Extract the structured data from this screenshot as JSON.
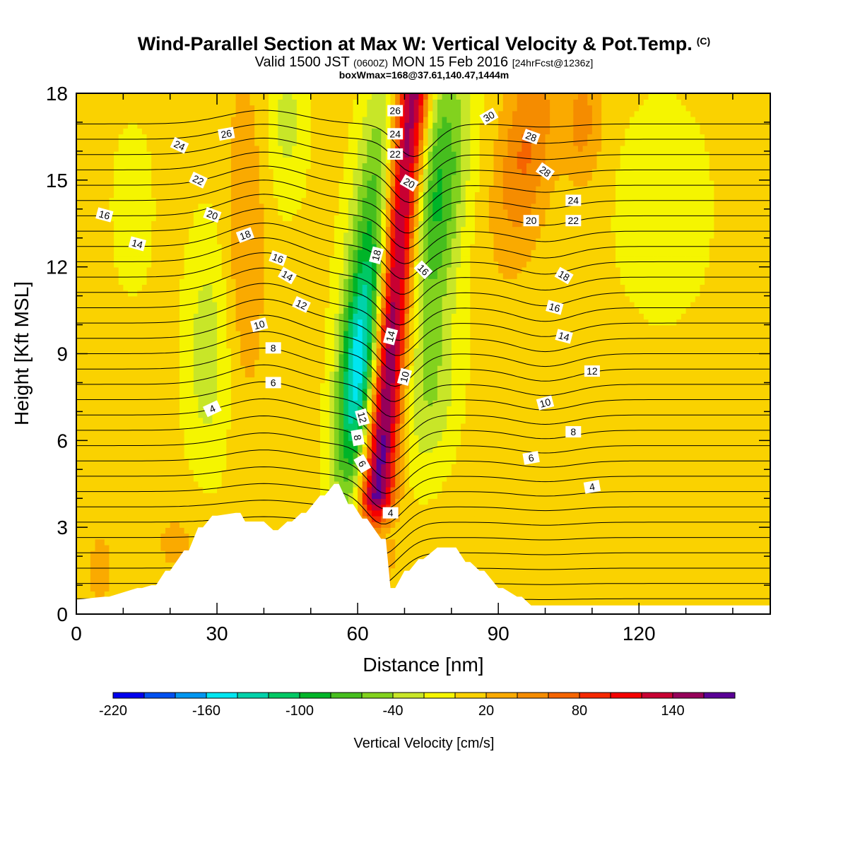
{
  "title": {
    "main": "Wind-Parallel Section at Max W: Vertical Velocity & Pot.Temp.",
    "copyright": "(C)",
    "valid_prefix": "Valid 1500 JST",
    "valid_utc": "(0600Z)",
    "valid_date": "MON 15 Feb 2016",
    "forecast": "[24hrFcst@1236z]",
    "boxwmax": "boxWmax=168@37.61,140.47,1444m"
  },
  "chart_data": {
    "type": "heatmap",
    "xlabel": "Distance [nm]",
    "ylabel": "Height [Kft MSL]",
    "xlim": [
      0,
      148
    ],
    "ylim": [
      0,
      18
    ],
    "x_ticks": [
      0,
      30,
      60,
      90,
      120
    ],
    "y_ticks": [
      0,
      3,
      6,
      9,
      12,
      15,
      18
    ],
    "colorbar": {
      "label": "Vertical Velocity [cm/s]",
      "tick_labels": [
        "-220",
        "-160",
        "-100",
        "-40",
        "20",
        "80",
        "140"
      ],
      "tick_values": [
        -220,
        -160,
        -100,
        -40,
        20,
        80,
        140
      ],
      "colors": [
        "#0000ee",
        "#0050f0",
        "#0096f0",
        "#00e6f0",
        "#00d2aa",
        "#00c864",
        "#00b428",
        "#46be1e",
        "#82d21e",
        "#c8e628",
        "#f5f500",
        "#fad200",
        "#faaa00",
        "#f58c00",
        "#f56400",
        "#f52800",
        "#f50000",
        "#c80032",
        "#96005a",
        "#5a0096"
      ]
    },
    "contour_labels": {
      "kind": "potential temperature",
      "values": [
        "26",
        "24",
        "22",
        "20",
        "16",
        "14",
        "18",
        "16",
        "14",
        "12",
        "10",
        "8",
        "6",
        "4",
        "26",
        "24",
        "22",
        "20",
        "18",
        "16",
        "14",
        "10",
        "12",
        "8",
        "6",
        "4",
        "30",
        "28",
        "28",
        "24",
        "22",
        "20",
        "18",
        "16",
        "14",
        "12",
        "10",
        "8",
        "6",
        "4"
      ]
    },
    "terrain_profile": {
      "x": [
        0,
        6,
        7,
        13,
        14,
        16,
        17,
        19,
        20,
        23,
        24,
        26,
        27,
        29,
        30,
        34,
        35,
        36,
        37,
        39,
        40,
        42,
        43,
        45,
        46,
        48,
        49,
        52,
        53,
        55,
        56,
        58,
        59,
        61,
        62,
        65,
        66,
        67,
        68,
        70,
        71,
        73,
        74,
        77,
        78,
        80,
        81,
        83,
        84,
        86,
        87,
        90,
        91,
        94,
        95,
        97,
        98,
        100,
        101,
        148
      ],
      "height": [
        0.5,
        0.6,
        0.6,
        0.9,
        0.9,
        1.0,
        1.0,
        1.5,
        1.5,
        2.2,
        2.2,
        3.0,
        3.0,
        3.4,
        3.4,
        3.5,
        3.5,
        3.2,
        3.2,
        3.2,
        3.2,
        2.9,
        2.9,
        3.2,
        3.2,
        3.5,
        3.5,
        4.1,
        4.1,
        4.5,
        4.5,
        3.8,
        3.8,
        3.3,
        3.3,
        2.6,
        2.6,
        0.9,
        0.9,
        1.5,
        1.5,
        1.9,
        1.9,
        2.3,
        2.3,
        2.3,
        2.3,
        1.8,
        1.8,
        1.5,
        1.5,
        0.9,
        0.9,
        0.6,
        0.6,
        0.3,
        0.3,
        0.3,
        0.3,
        0.3
      ]
    }
  }
}
